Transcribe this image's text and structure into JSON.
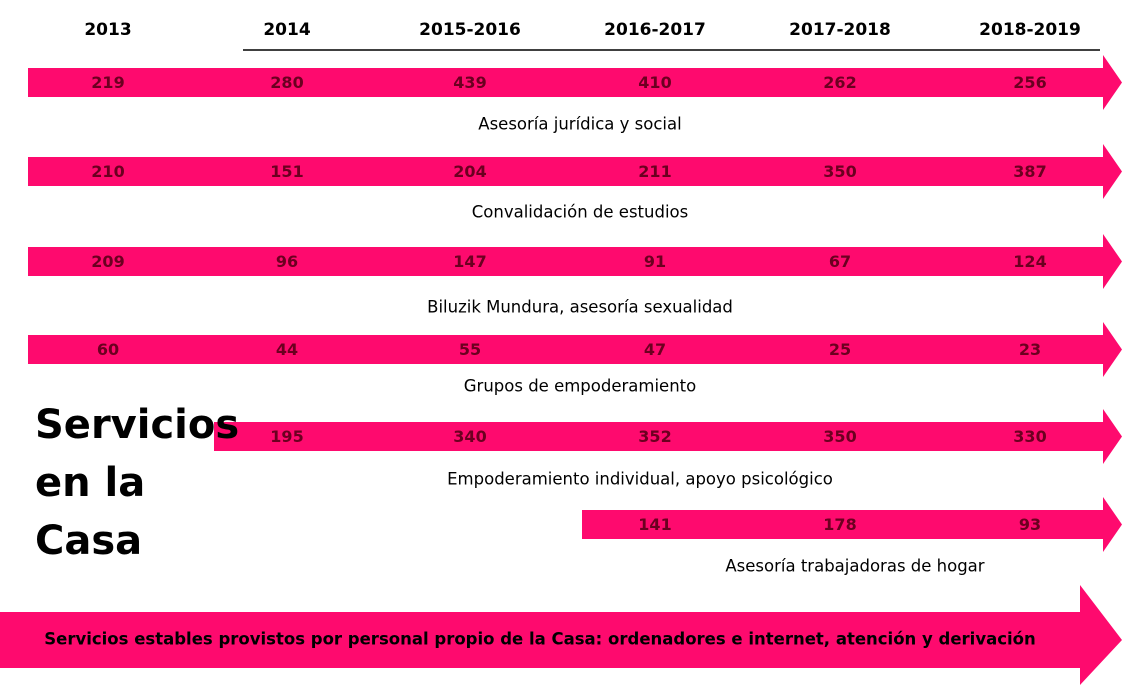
{
  "periods": [
    "2013",
    "2014",
    "2015-2016",
    "2016-2017",
    "2017-2018",
    "2018-2019"
  ],
  "rows": [
    {
      "label": "Asesoría jurídica y social",
      "values": [
        219,
        280,
        439,
        410,
        262,
        256
      ]
    },
    {
      "label": "Convalidación de estudios",
      "values": [
        210,
        151,
        204,
        211,
        350,
        387
      ]
    },
    {
      "label": "Biluzik Mundura, asesoría sexualidad",
      "values": [
        209,
        96,
        147,
        91,
        67,
        124
      ]
    },
    {
      "label": "Grupos de empoderamiento",
      "values": [
        60,
        44,
        55,
        47,
        25,
        23
      ]
    },
    {
      "label": "Empoderamiento individual, apoyo psicológico",
      "values": [
        null,
        195,
        340,
        352,
        350,
        330
      ]
    },
    {
      "label": "Asesoría trabajadoras de hogar",
      "values": [
        null,
        null,
        null,
        141,
        178,
        93
      ]
    }
  ],
  "side_title": "Servicios en la Casa",
  "banner": "Servicios estables provistos por personal propio de la Casa: ordenadores e internet, atención y derivación"
}
